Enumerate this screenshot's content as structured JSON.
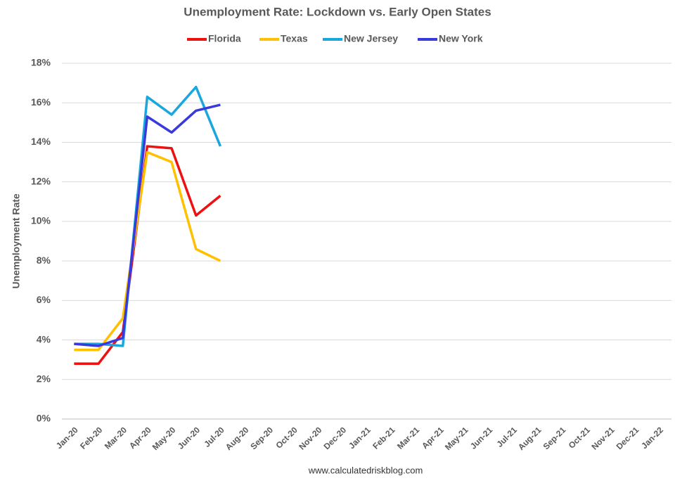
{
  "chart_data": {
    "type": "line",
    "title": "Unemployment Rate: Lockdown vs. Early Open States",
    "y_label": "Unemployment Rate",
    "source": "www.calculatedriskblog.com",
    "legend": "top",
    "grid": true,
    "categories": [
      "Jan-20",
      "Feb-20",
      "Mar-20",
      "Apr-20",
      "May-20",
      "Jun-20",
      "Jul-20",
      "Aug-20",
      "Sep-20",
      "Oct-20",
      "Nov-20",
      "Dec-20",
      "Jan-21",
      "Feb-21",
      "Mar-21",
      "Apr-21",
      "May-21",
      "Jun-21",
      "Jul-21",
      "Aug-21",
      "Sep-21",
      "Oct-21",
      "Nov-21",
      "Dec-21",
      "Jan-22"
    ],
    "series": [
      {
        "name": "Florida",
        "color": "#ee1111",
        "values": [
          2.8,
          2.8,
          4.4,
          13.8,
          13.7,
          10.3,
          11.3,
          null,
          null,
          null,
          null,
          null,
          null,
          null,
          null,
          null,
          null,
          null,
          null,
          null,
          null,
          null,
          null,
          null,
          null
        ]
      },
      {
        "name": "Texas",
        "color": "#ffc000",
        "values": [
          3.5,
          3.5,
          5.1,
          13.5,
          13.0,
          8.6,
          8.0,
          null,
          null,
          null,
          null,
          null,
          null,
          null,
          null,
          null,
          null,
          null,
          null,
          null,
          null,
          null,
          null,
          null,
          null
        ]
      },
      {
        "name": "New Jersey",
        "color": "#1aa7dd",
        "values": [
          3.8,
          3.8,
          3.7,
          16.3,
          15.4,
          16.8,
          13.8,
          null,
          null,
          null,
          null,
          null,
          null,
          null,
          null,
          null,
          null,
          null,
          null,
          null,
          null,
          null,
          null,
          null,
          null
        ]
      },
      {
        "name": "New York",
        "color": "#3a3adc",
        "values": [
          3.8,
          3.7,
          4.1,
          15.3,
          14.5,
          15.6,
          15.9,
          null,
          null,
          null,
          null,
          null,
          null,
          null,
          null,
          null,
          null,
          null,
          null,
          null,
          null,
          null,
          null,
          null,
          null
        ]
      }
    ],
    "ylim": [
      0,
      18
    ],
    "yticks": [
      {
        "value": 0,
        "label": "0%"
      },
      {
        "value": 2,
        "label": "2%"
      },
      {
        "value": 4,
        "label": "4%"
      },
      {
        "value": 6,
        "label": "6%"
      },
      {
        "value": 8,
        "label": "8%"
      },
      {
        "value": 10,
        "label": "10%"
      },
      {
        "value": 12,
        "label": "12%"
      },
      {
        "value": 14,
        "label": "14%"
      },
      {
        "value": 16,
        "label": "16%"
      },
      {
        "value": 18,
        "label": "18%"
      }
    ]
  }
}
